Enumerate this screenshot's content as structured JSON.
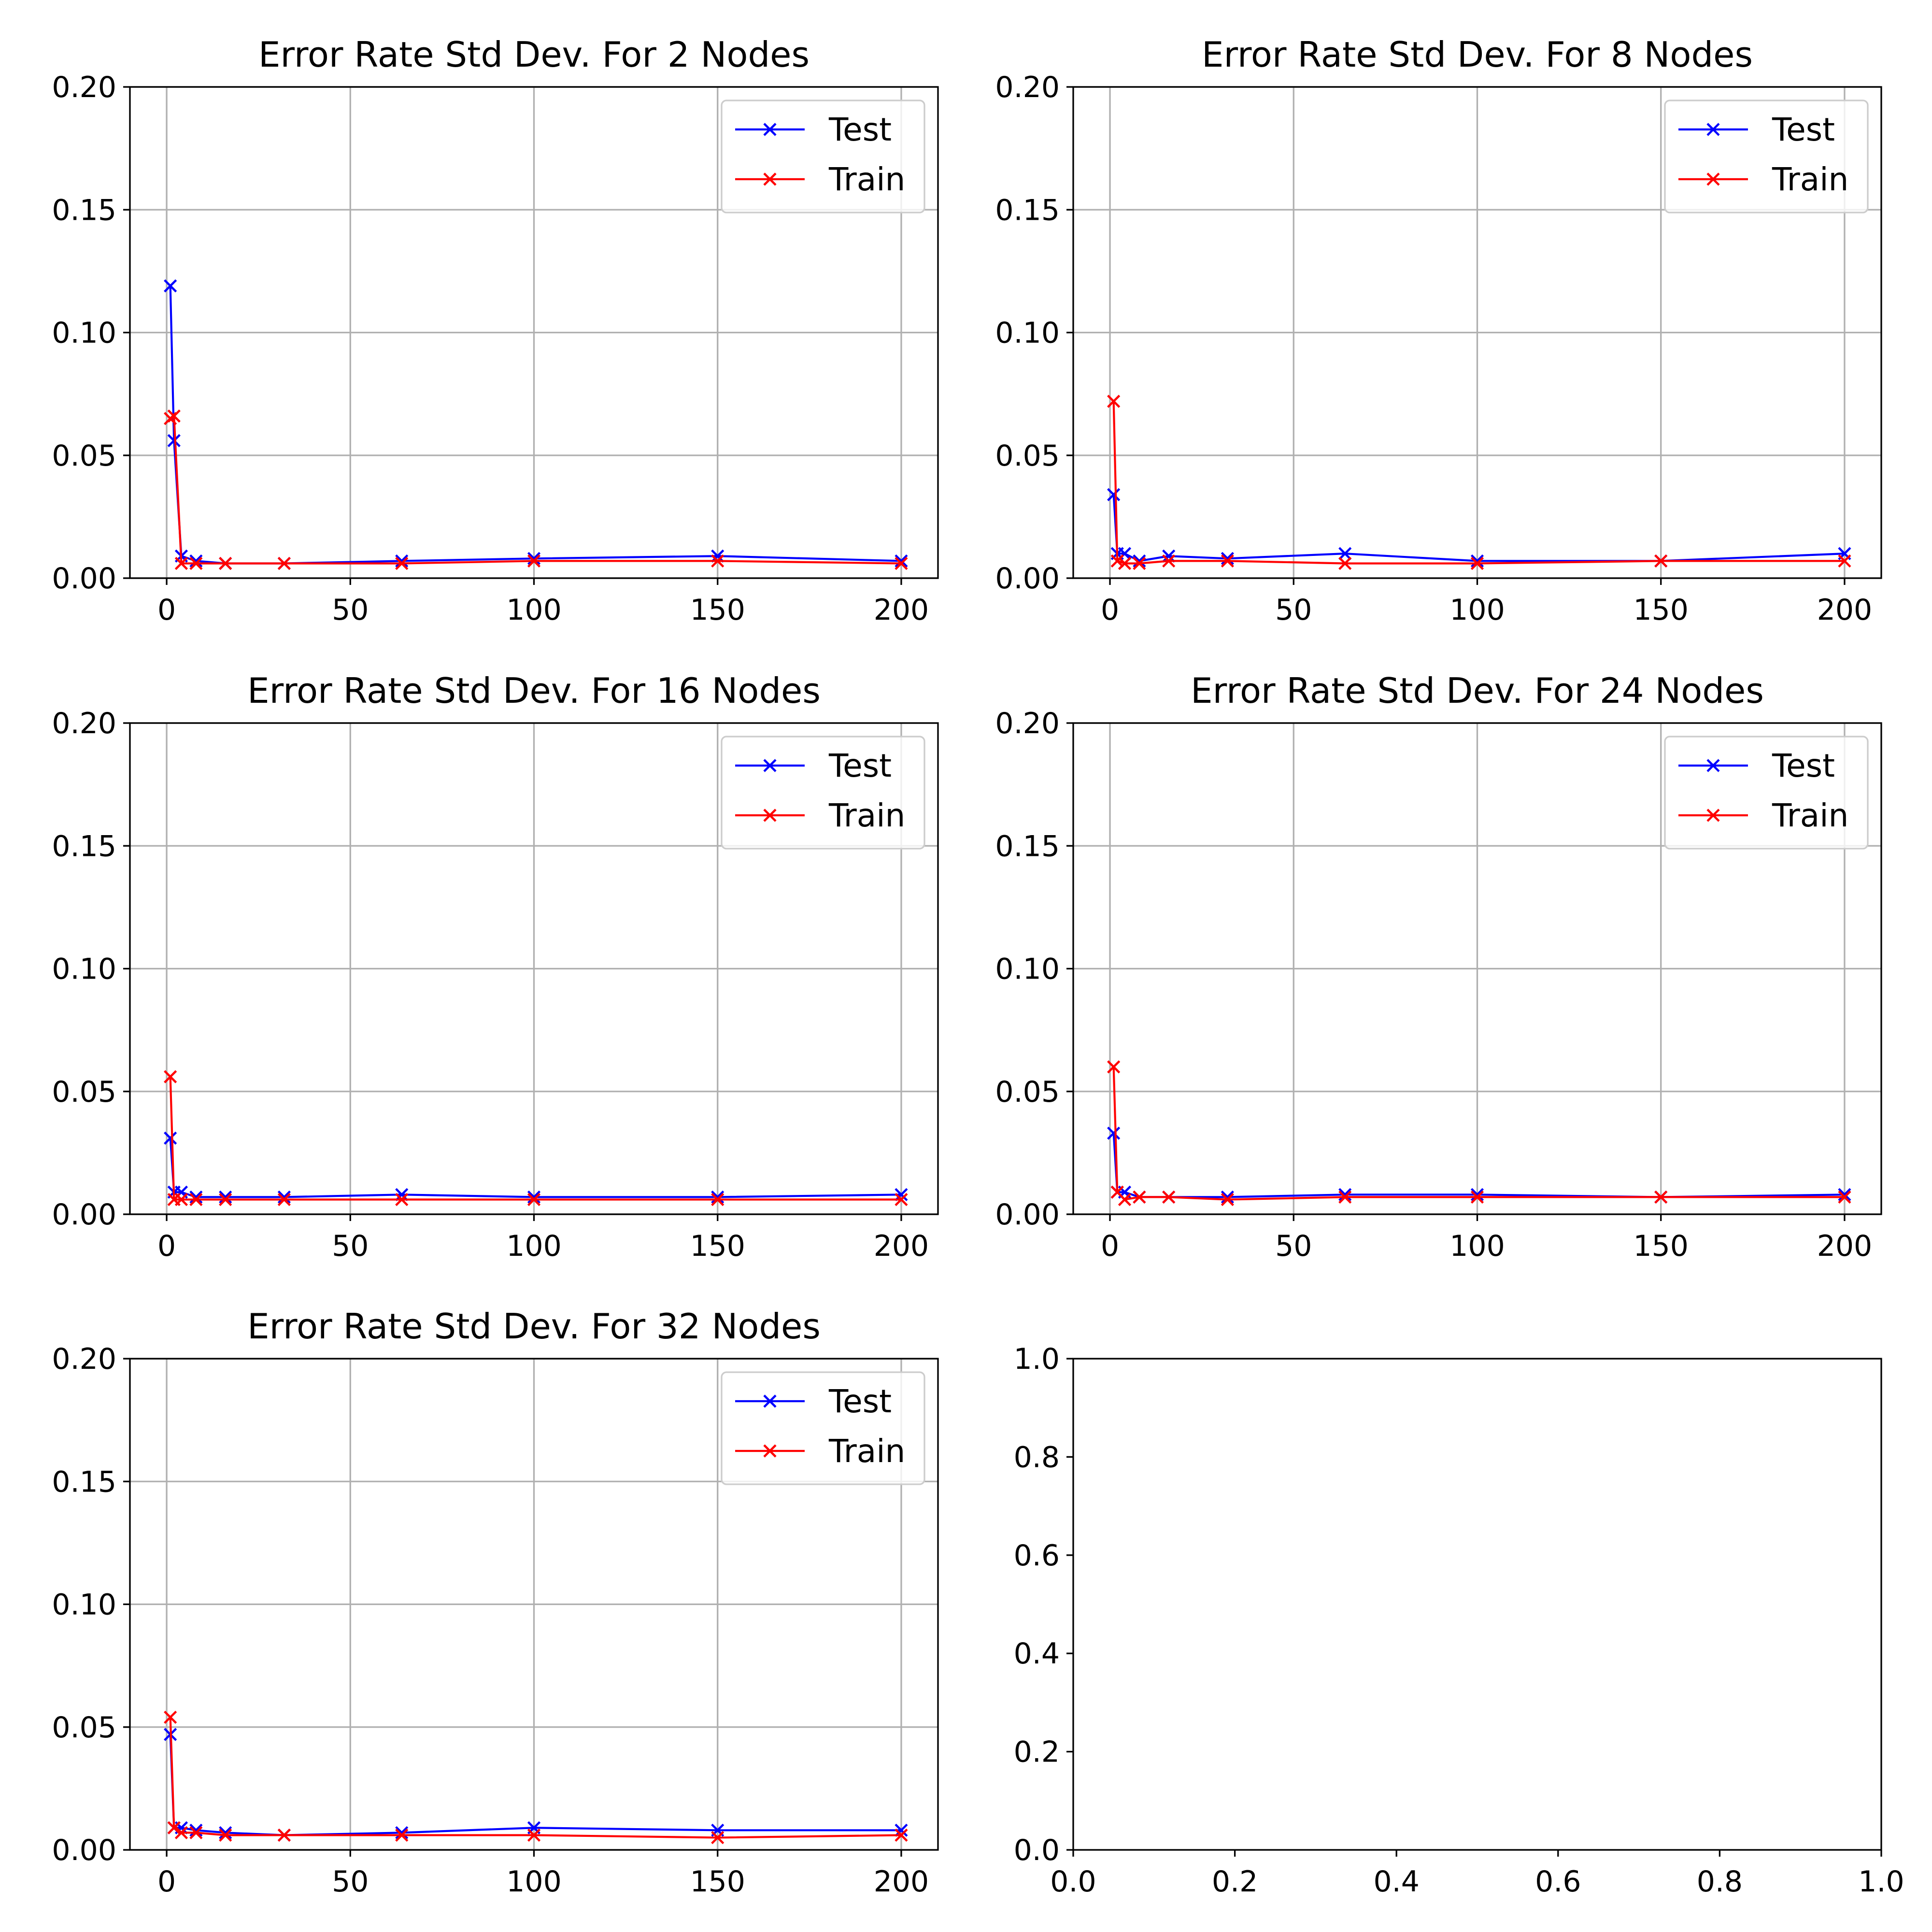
{
  "chart_data": [
    {
      "type": "line",
      "title": "Error Rate Std Dev. For 2 Nodes",
      "xlabel": "",
      "ylabel": "",
      "xlim": [
        -10,
        210
      ],
      "ylim": [
        0,
        0.2
      ],
      "xticks": [
        0,
        50,
        100,
        150,
        200
      ],
      "yticks": [
        0.0,
        0.05,
        0.1,
        0.15,
        0.2
      ],
      "xtick_labels": [
        "0",
        "50",
        "100",
        "150",
        "200"
      ],
      "ytick_labels": [
        "0.00",
        "0.05",
        "0.10",
        "0.15",
        "0.20"
      ],
      "grid": true,
      "legend": "upper right",
      "x": [
        1,
        2,
        4,
        8,
        16,
        32,
        64,
        100,
        150,
        200
      ],
      "series": [
        {
          "name": "Test",
          "color": "#0000ff",
          "marker": "x",
          "values": [
            0.119,
            0.056,
            0.009,
            0.007,
            0.006,
            0.006,
            0.007,
            0.008,
            0.009,
            0.007
          ]
        },
        {
          "name": "Train",
          "color": "#ff0000",
          "marker": "x",
          "values": [
            0.065,
            0.066,
            0.006,
            0.006,
            0.006,
            0.006,
            0.006,
            0.007,
            0.007,
            0.006
          ]
        }
      ]
    },
    {
      "type": "line",
      "title": "Error Rate Std Dev. For 8 Nodes",
      "xlabel": "",
      "ylabel": "",
      "xlim": [
        -10,
        210
      ],
      "ylim": [
        0,
        0.2
      ],
      "xticks": [
        0,
        50,
        100,
        150,
        200
      ],
      "yticks": [
        0.0,
        0.05,
        0.1,
        0.15,
        0.2
      ],
      "xtick_labels": [
        "0",
        "50",
        "100",
        "150",
        "200"
      ],
      "ytick_labels": [
        "0.00",
        "0.05",
        "0.10",
        "0.15",
        "0.20"
      ],
      "grid": true,
      "legend": "upper right",
      "x": [
        1,
        2,
        4,
        8,
        16,
        32,
        64,
        100,
        150,
        200
      ],
      "series": [
        {
          "name": "Test",
          "color": "#0000ff",
          "marker": "x",
          "values": [
            0.034,
            0.01,
            0.01,
            0.007,
            0.009,
            0.008,
            0.01,
            0.007,
            0.007,
            0.01
          ]
        },
        {
          "name": "Train",
          "color": "#ff0000",
          "marker": "x",
          "values": [
            0.072,
            0.007,
            0.006,
            0.006,
            0.007,
            0.007,
            0.006,
            0.006,
            0.007,
            0.007
          ]
        }
      ]
    },
    {
      "type": "line",
      "title": "Error Rate Std Dev. For 16 Nodes",
      "xlabel": "",
      "ylabel": "",
      "xlim": [
        -10,
        210
      ],
      "ylim": [
        0,
        0.2
      ],
      "xticks": [
        0,
        50,
        100,
        150,
        200
      ],
      "yticks": [
        0.0,
        0.05,
        0.1,
        0.15,
        0.2
      ],
      "xtick_labels": [
        "0",
        "50",
        "100",
        "150",
        "200"
      ],
      "ytick_labels": [
        "0.00",
        "0.05",
        "0.10",
        "0.15",
        "0.20"
      ],
      "grid": true,
      "legend": "upper right",
      "x": [
        1,
        2,
        4,
        8,
        16,
        32,
        64,
        100,
        150,
        200
      ],
      "series": [
        {
          "name": "Test",
          "color": "#0000ff",
          "marker": "x",
          "values": [
            0.031,
            0.009,
            0.009,
            0.007,
            0.007,
            0.007,
            0.008,
            0.007,
            0.007,
            0.008
          ]
        },
        {
          "name": "Train",
          "color": "#ff0000",
          "marker": "x",
          "values": [
            0.056,
            0.006,
            0.006,
            0.006,
            0.006,
            0.006,
            0.006,
            0.006,
            0.006,
            0.006
          ]
        }
      ]
    },
    {
      "type": "line",
      "title": "Error Rate Std Dev. For 24 Nodes",
      "xlabel": "",
      "ylabel": "",
      "xlim": [
        -10,
        210
      ],
      "ylim": [
        0,
        0.2
      ],
      "xticks": [
        0,
        50,
        100,
        150,
        200
      ],
      "yticks": [
        0.0,
        0.05,
        0.1,
        0.15,
        0.2
      ],
      "xtick_labels": [
        "0",
        "50",
        "100",
        "150",
        "200"
      ],
      "ytick_labels": [
        "0.00",
        "0.05",
        "0.10",
        "0.15",
        "0.20"
      ],
      "grid": true,
      "legend": "upper right",
      "x": [
        1,
        2,
        4,
        8,
        16,
        32,
        64,
        100,
        150,
        200
      ],
      "series": [
        {
          "name": "Test",
          "color": "#0000ff",
          "marker": "x",
          "values": [
            0.033,
            0.009,
            0.009,
            0.007,
            0.007,
            0.007,
            0.008,
            0.008,
            0.007,
            0.008
          ]
        },
        {
          "name": "Train",
          "color": "#ff0000",
          "marker": "x",
          "values": [
            0.06,
            0.009,
            0.006,
            0.007,
            0.007,
            0.006,
            0.007,
            0.007,
            0.007,
            0.007
          ]
        }
      ]
    },
    {
      "type": "line",
      "title": "Error Rate Std Dev. For 32 Nodes",
      "xlabel": "",
      "ylabel": "",
      "xlim": [
        -10,
        210
      ],
      "ylim": [
        0,
        0.2
      ],
      "xticks": [
        0,
        50,
        100,
        150,
        200
      ],
      "yticks": [
        0.0,
        0.05,
        0.1,
        0.15,
        0.2
      ],
      "xtick_labels": [
        "0",
        "50",
        "100",
        "150",
        "200"
      ],
      "ytick_labels": [
        "0.00",
        "0.05",
        "0.10",
        "0.15",
        "0.20"
      ],
      "grid": true,
      "legend": "upper right",
      "x": [
        1,
        2,
        4,
        8,
        16,
        32,
        64,
        100,
        150,
        200
      ],
      "series": [
        {
          "name": "Test",
          "color": "#0000ff",
          "marker": "x",
          "values": [
            0.047,
            0.009,
            0.009,
            0.008,
            0.007,
            0.006,
            0.007,
            0.009,
            0.008,
            0.008
          ]
        },
        {
          "name": "Train",
          "color": "#ff0000",
          "marker": "x",
          "values": [
            0.054,
            0.009,
            0.007,
            0.007,
            0.006,
            0.006,
            0.006,
            0.006,
            0.005,
            0.006
          ]
        }
      ]
    },
    {
      "type": "line",
      "title": "",
      "xlabel": "",
      "ylabel": "",
      "xlim": [
        0,
        1
      ],
      "ylim": [
        0,
        1
      ],
      "xticks": [
        0.0,
        0.2,
        0.4,
        0.6,
        0.8,
        1.0
      ],
      "yticks": [
        0.0,
        0.2,
        0.4,
        0.6,
        0.8,
        1.0
      ],
      "xtick_labels": [
        "0.0",
        "0.2",
        "0.4",
        "0.6",
        "0.8",
        "1.0"
      ],
      "ytick_labels": [
        "0.0",
        "0.2",
        "0.4",
        "0.6",
        "0.8",
        "1.0"
      ],
      "grid": false,
      "legend": "none",
      "x": [],
      "series": []
    }
  ]
}
